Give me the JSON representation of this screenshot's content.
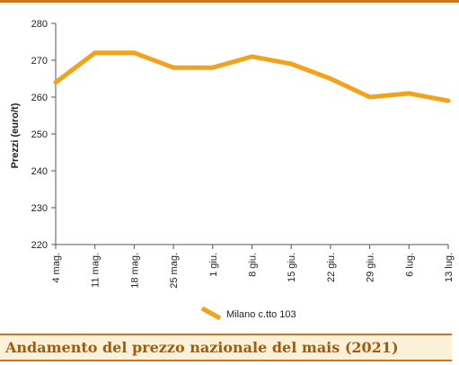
{
  "colors": {
    "series": "#f2a21b",
    "frame": "#c9771a",
    "caption_bg": "#fbf1d9",
    "caption_text": "#a15a12",
    "axis": "#555555"
  },
  "caption": {
    "title": "Andamento del prezzo nazionale del mais (2021)"
  },
  "chart_data": {
    "type": "line",
    "ylabel": "Prezzi (euro/t)",
    "xlabel": "",
    "ylim": [
      220,
      280
    ],
    "yticks": [
      220,
      230,
      240,
      250,
      260,
      270,
      280
    ],
    "categories": [
      "4 mag.",
      "11 mag.",
      "18 mag.",
      "25 mag.",
      "1 giu.",
      "8 giu.",
      "15 giu.",
      "22 giu.",
      "29 giu.",
      "6 lug.",
      "13 lug."
    ],
    "series": [
      {
        "name": "Milano  c.tto 103",
        "values": [
          264,
          272,
          272,
          268,
          268,
          271,
          269,
          265,
          260,
          261,
          259
        ]
      }
    ],
    "legend": "bottom-center",
    "grid": false
  }
}
